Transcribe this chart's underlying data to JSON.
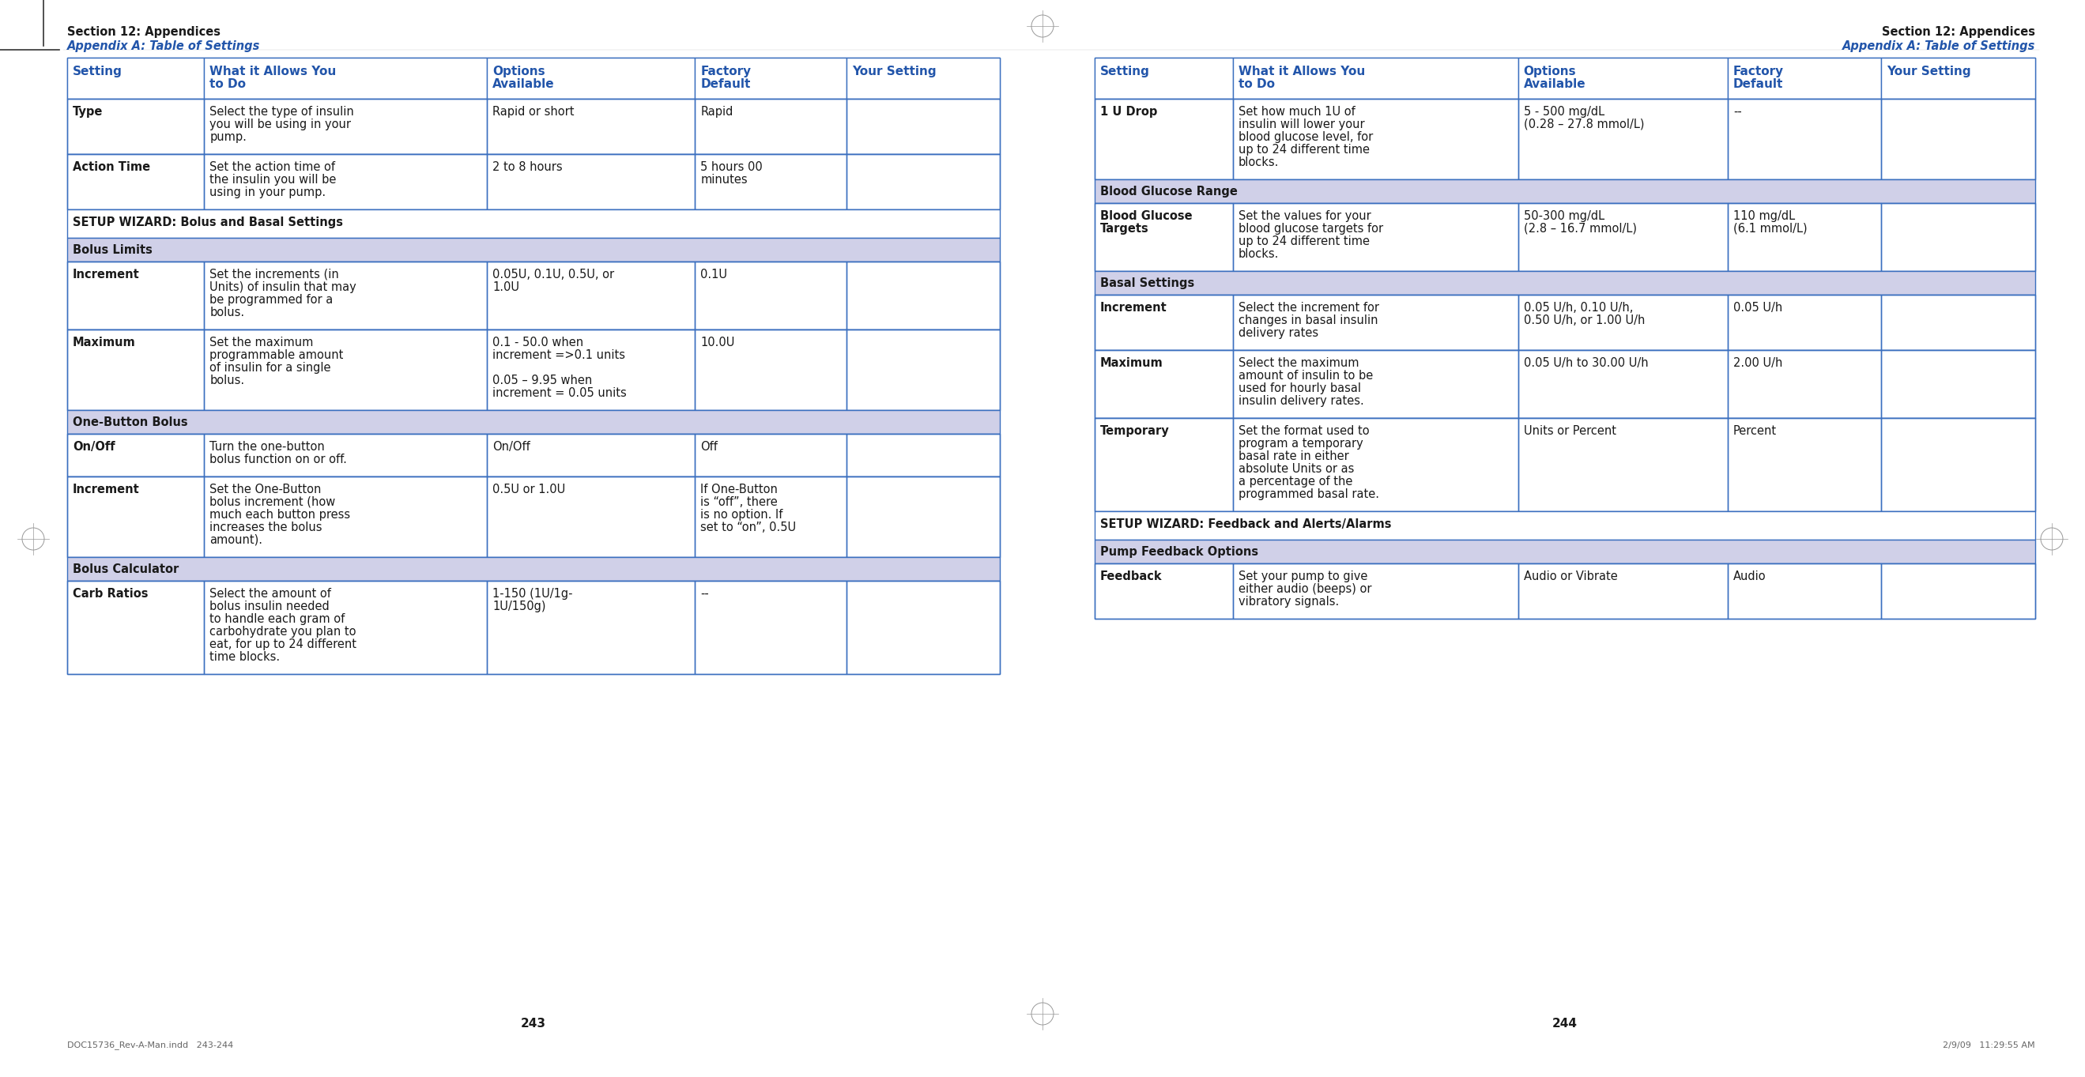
{
  "page_bg": "#ffffff",
  "header_bold_color": "#1a1a1a",
  "header_italic_color": "#2255aa",
  "table_header_color": "#2255aa",
  "section_bg": "#ffffff",
  "subsection_bg": "#d0d0e8",
  "table_border_color": "#3a6fbf",
  "text_color": "#1a1a1a",
  "left_page_number": "243",
  "right_page_number": "244",
  "left_section_title": "Section 12: Appendices",
  "left_section_subtitle": "Appendix A: Table of Settings",
  "right_section_title": "Section 12: Appendices",
  "right_section_subtitle": "Appendix A: Table of Settings",
  "col_headers": [
    "Setting",
    "What it Allows You\nto Do",
    "Options\nAvailable",
    "Factory\nDefault",
    "Your Setting"
  ],
  "left_rows": [
    {
      "type": "data",
      "cells": [
        "Type",
        "Select the type of insulin\nyou will be using in your\npump.",
        "Rapid or short",
        "Rapid",
        ""
      ]
    },
    {
      "type": "data",
      "cells": [
        "Action Time",
        "Set the action time of\nthe insulin you will be\nusing in your pump.",
        "2 to 8 hours",
        "5 hours 00\nminutes",
        ""
      ]
    },
    {
      "type": "section",
      "cells": [
        "SETUP WIZARD: Bolus and Basal Settings",
        "",
        "",
        "",
        ""
      ]
    },
    {
      "type": "subsection",
      "cells": [
        "Bolus Limits",
        "",
        "",
        "",
        ""
      ]
    },
    {
      "type": "data",
      "cells": [
        "Increment",
        "Set the increments (in\nUnits) of insulin that may\nbe programmed for a\nbolus.",
        "0.05U, 0.1U, 0.5U, or\n1.0U",
        "0.1U",
        ""
      ]
    },
    {
      "type": "data",
      "cells": [
        "Maximum",
        "Set the maximum\nprogrammable amount\nof insulin for a single\nbolus.",
        "0.1 - 50.0 when\nincrement =>0.1 units\n\n0.05 – 9.95 when\nincrement = 0.05 units",
        "10.0U",
        ""
      ]
    },
    {
      "type": "subsection",
      "cells": [
        "One-Button Bolus",
        "",
        "",
        "",
        ""
      ]
    },
    {
      "type": "data",
      "cells": [
        "On/Off",
        "Turn the one-button\nbolus function on or off.",
        "On/Off",
        "Off",
        ""
      ]
    },
    {
      "type": "data",
      "cells": [
        "Increment",
        "Set the One-Button\nbolus increment (how\nmuch each button press\nincreases the bolus\namount).",
        "0.5U or 1.0U",
        "If One-Button\nis “off”, there\nis no option. If\nset to “on”, 0.5U",
        ""
      ]
    },
    {
      "type": "subsection",
      "cells": [
        "Bolus Calculator",
        "",
        "",
        "",
        ""
      ]
    },
    {
      "type": "data",
      "cells": [
        "Carb Ratios",
        "Select the amount of\nbolus insulin needed\nto handle each gram of\ncarbohydrate you plan to\neat, for up to 24 different\ntime blocks.",
        "1-150 (1U/1g-\n1U/150g)",
        "--",
        ""
      ]
    }
  ],
  "right_rows": [
    {
      "type": "data",
      "cells": [
        "1 U Drop",
        "Set how much 1U of\ninsulin will lower your\nblood glucose level, for\nup to 24 different time\nblocks.",
        "5 - 500 mg/dL\n(0.28 – 27.8 mmol/L)",
        "--",
        ""
      ]
    },
    {
      "type": "subsection",
      "cells": [
        "Blood Glucose Range",
        "",
        "",
        "",
        ""
      ]
    },
    {
      "type": "data",
      "cells": [
        "Blood Glucose\nTargets",
        "Set the values for your\nblood glucose targets for\nup to 24 different time\nblocks.",
        "50-300 mg/dL\n(2.8 – 16.7 mmol/L)",
        "110 mg/dL\n(6.1 mmol/L)",
        ""
      ]
    },
    {
      "type": "subsection",
      "cells": [
        "Basal Settings",
        "",
        "",
        "",
        ""
      ]
    },
    {
      "type": "data",
      "cells": [
        "Increment",
        "Select the increment for\nchanges in basal insulin\ndelivery rates",
        "0.05 U/h, 0.10 U/h,\n0.50 U/h, or 1.00 U/h",
        "0.05 U/h",
        ""
      ]
    },
    {
      "type": "data",
      "cells": [
        "Maximum",
        "Select the maximum\namount of insulin to be\nused for hourly basal\ninsulin delivery rates.",
        "0.05 U/h to 30.00 U/h",
        "2.00 U/h",
        ""
      ]
    },
    {
      "type": "data",
      "cells": [
        "Temporary",
        "Set the format used to\nprogram a temporary\nbasal rate in either\nabsolute Units or as\na percentage of the\nprogrammed basal rate.",
        "Units or Percent",
        "Percent",
        ""
      ]
    },
    {
      "type": "section",
      "cells": [
        "SETUP WIZARD: Feedback and Alerts/Alarms",
        "",
        "",
        "",
        ""
      ]
    },
    {
      "type": "subsection",
      "cells": [
        "Pump Feedback Options",
        "",
        "",
        "",
        ""
      ]
    },
    {
      "type": "data",
      "cells": [
        "Feedback",
        "Set your pump to give\neither audio (beeps) or\nvibratory signals.",
        "Audio or Vibrate",
        "Audio",
        ""
      ]
    }
  ]
}
